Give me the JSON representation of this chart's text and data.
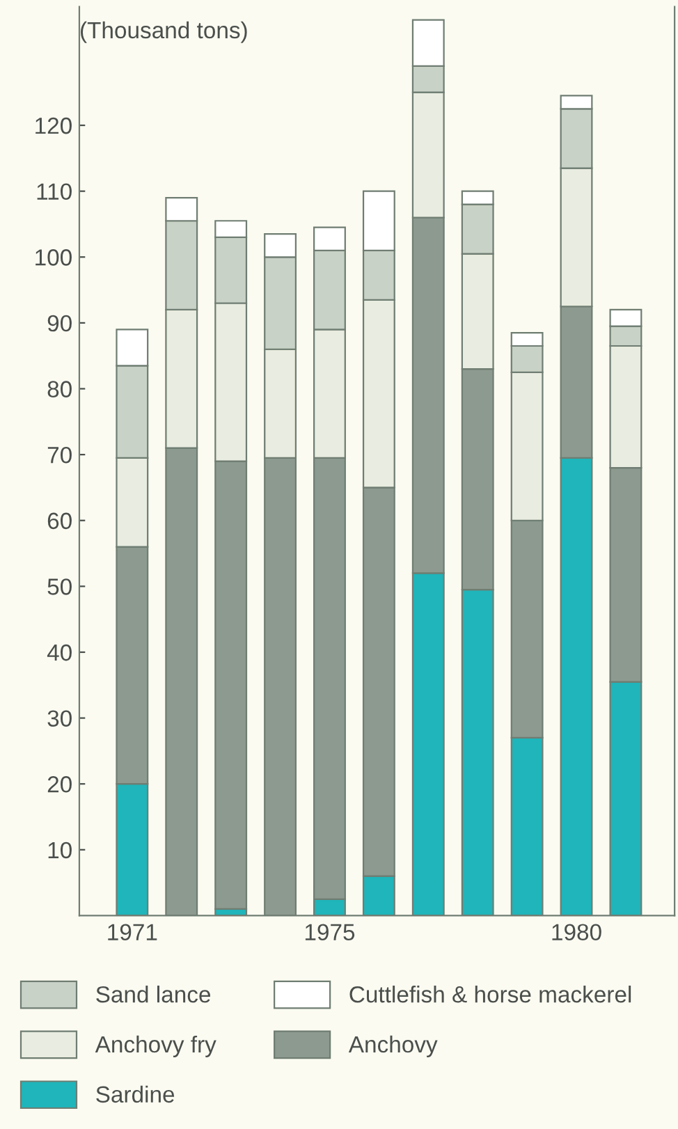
{
  "chart_data": {
    "type": "bar",
    "stacked": true,
    "ylabel": "(Thousand tons)",
    "categories": [
      "1971",
      null,
      null,
      null,
      "1975",
      null,
      null,
      null,
      null,
      "1980",
      null
    ],
    "series": [
      {
        "name": "Sardine",
        "color": "#1fb5ba",
        "values": [
          20,
          0,
          1,
          0,
          2.5,
          6,
          52,
          49.5,
          27,
          69.5,
          35.5
        ]
      },
      {
        "name": "Anchovy",
        "color": "#8c9a8f",
        "values": [
          36,
          71,
          68,
          69.5,
          67,
          59,
          54,
          33.5,
          33,
          23,
          32.5
        ]
      },
      {
        "name": "Anchovy fry",
        "color": "#e9ece0",
        "values": [
          13.5,
          21,
          24,
          16.5,
          19.5,
          28.5,
          19,
          17.5,
          22.5,
          21,
          18.5
        ]
      },
      {
        "name": "Sand lance",
        "color": "#c9d2c6",
        "values": [
          14,
          13.5,
          10,
          14,
          12,
          7.5,
          4,
          7.5,
          4,
          9,
          3
        ]
      },
      {
        "name": "Cuttlefish & horse mackerel",
        "color": "#ffffff",
        "values": [
          5.5,
          3.5,
          2.5,
          3.5,
          3.5,
          9,
          7,
          2,
          2,
          2,
          2.5
        ]
      }
    ],
    "ylim": [
      0,
      138
    ],
    "yticks": [
      10,
      20,
      30,
      40,
      50,
      60,
      70,
      80,
      90,
      100,
      110,
      120
    ],
    "grid": false,
    "legend": "bottom"
  }
}
